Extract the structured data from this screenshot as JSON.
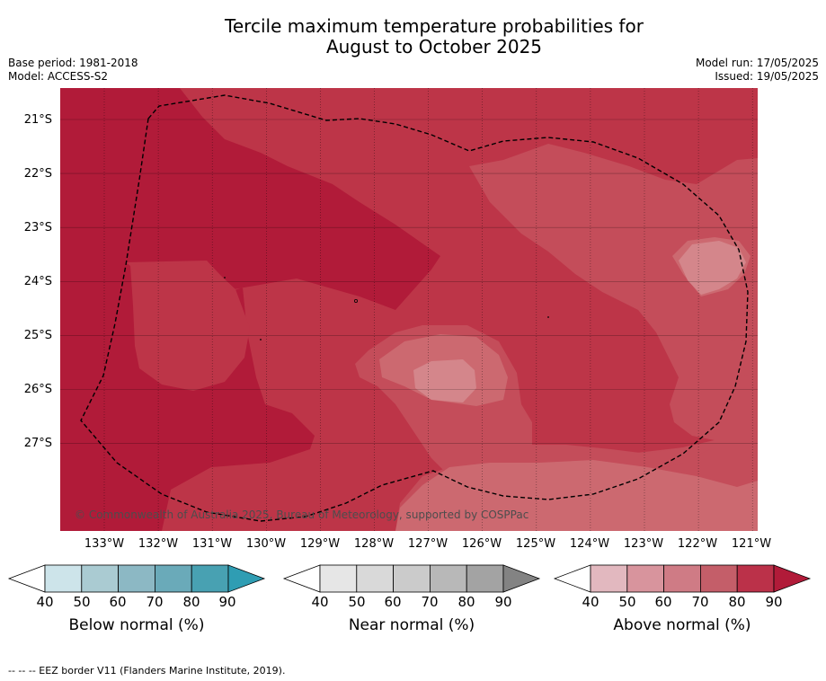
{
  "header": {
    "title_line1": "Tercile maximum temperature probabilities for",
    "title_line2": "August to October 2025",
    "base_period": "Base period: 1981-2018",
    "model": "Model: ACCESS-S2",
    "model_run": "Model run: 17/05/2025",
    "issued": "Issued: 19/05/2025"
  },
  "map": {
    "copyright": "© Commonwealth of Australia 2025, Bureau of Meteorology, supported by COSPPac",
    "lat_labels": [
      "21°S",
      "22°S",
      "23°S",
      "24°S",
      "25°S",
      "26°S",
      "27°S"
    ],
    "lon_labels": [
      "133°W",
      "132°W",
      "131°W",
      "130°W",
      "129°W",
      "128°W",
      "127°W",
      "126°W",
      "125°W",
      "124°W",
      "123°W",
      "122°W",
      "121°W"
    ],
    "colors": {
      "above_90": "#b11b39",
      "above_80": "#bd3548",
      "above_70": "#c44d5a",
      "above_60": "#cc6970",
      "above_50": "#d4868b"
    }
  },
  "colorbars": {
    "ticks": [
      "40",
      "50",
      "60",
      "70",
      "80",
      "90"
    ],
    "below": {
      "label": "Below normal (%)",
      "colors": [
        "#cde4ea",
        "#aacbd2",
        "#8cb8c4",
        "#6aaab9",
        "#48a1b2"
      ],
      "extend_color": "#2f9db3"
    },
    "near": {
      "label": "Near normal (%)",
      "colors": [
        "#e6e6e6",
        "#d9d9d9",
        "#cbcbcb",
        "#b8b8b8",
        "#a3a3a3"
      ],
      "extend_color": "#838383"
    },
    "above": {
      "label": "Above normal (%)",
      "colors": [
        "#e2b8bf",
        "#d8949d",
        "#cf7b85",
        "#c45e69",
        "#bb3149"
      ],
      "extend_color": "#b11b39"
    }
  },
  "footnote": "--  --  -- EEZ border V11 (Flanders Marine Institute, 2019)."
}
